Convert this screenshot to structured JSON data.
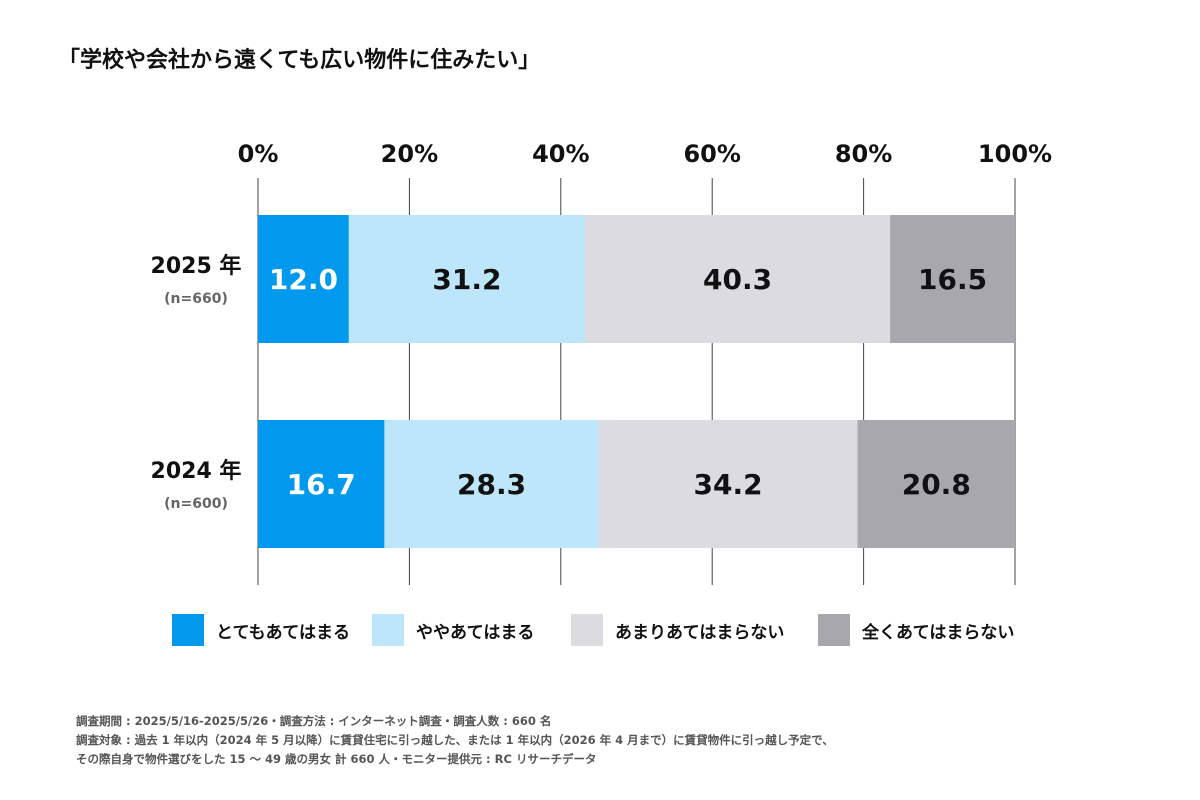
{
  "chart_data": {
    "type": "bar",
    "orientation": "horizontal",
    "stacked": true,
    "title": "「学校や会社から遠くても広い物件に住みたい」",
    "categories": [
      {
        "label": "2025 年",
        "n": "(n=660)"
      },
      {
        "label": "2024 年",
        "n": "(n=600)"
      }
    ],
    "xlim": [
      0,
      100
    ],
    "ticks": [
      "0%",
      "20%",
      "40%",
      "60%",
      "80%",
      "100%"
    ],
    "grid": true,
    "legend_position": "bottom",
    "series": [
      {
        "name": "とてもあてはまる",
        "color": "#0099ee",
        "label_color": "#ffffff",
        "values": [
          12.0,
          16.7
        ]
      },
      {
        "name": "ややあてはまる",
        "color": "#bde6fb",
        "label_color": "#111111",
        "values": [
          31.2,
          28.3
        ]
      },
      {
        "name": "あまりあてはまらない",
        "color": "#dcdbdf",
        "label_color": "#111111",
        "values": [
          40.3,
          34.2
        ]
      },
      {
        "name": "全くあてはまらない",
        "color": "#a8a7ab",
        "label_color": "#111111",
        "values": [
          16.5,
          20.8
        ]
      }
    ]
  },
  "notes": [
    "調査期間 : 2025/5/16-2025/5/26・調査方法 : インターネット調査・調査人数 : 660 名",
    "調査対象 : 過去 1 年以内（2024 年 5 月以降）に賃貸住宅に引っ越した、または 1 年以内（2026 年 4 月まで）に賃貸物件に引っ越し予定で、",
    "その際自身で物件選びをした 15 ～ 49 歳の男女 計 660 人・モニター提供元 : RC リサーチデータ"
  ]
}
